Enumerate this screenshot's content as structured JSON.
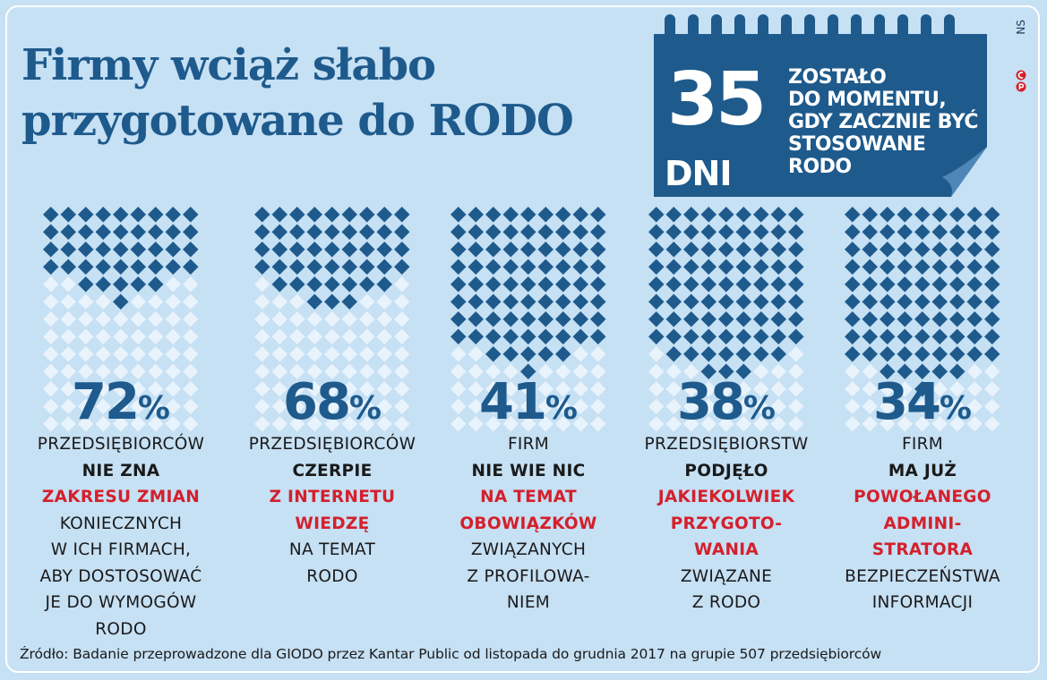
{
  "title": [
    "Firmy wciąż słabo",
    "przygotowane do RODO"
  ],
  "calendar": {
    "number": "35",
    "unit": "DNI",
    "caption": [
      "ZOSTAŁO",
      "DO MOMENTU,",
      "GDY ZACZNIE BYĆ",
      "STOSOWANE",
      "RODO"
    ]
  },
  "author": "NS",
  "logo": "CP",
  "colors": {
    "dark_blue": "#1e5a8c",
    "light_diamond": "#e9f3fb",
    "red": "#d4202c",
    "background": "#c6e0f4"
  },
  "chart_data": {
    "type": "pictogram",
    "title": "Firmy wciąż słabo przygotowane do RODO",
    "categories": [
      "NIE ZNA ZAKRESU ZMIAN",
      "CZERPIE Z INTERNETU WIEDZĘ",
      "NIE WIE NIC NA TEMAT OBOWIĄZKÓW",
      "PODJĘŁO JAKIEKOLWIEK PRZYGOTOWANIA",
      "MA JUŻ POWOŁANEGO ADMINISTRATORA"
    ],
    "values": [
      72,
      68,
      41,
      38,
      34
    ],
    "unit": "%",
    "columns": [
      {
        "value": "72",
        "sign": "%",
        "lines": [
          {
            "t": "PRZEDSIĘBIORCÓW",
            "s": "n"
          },
          {
            "t": "NIE ZNA",
            "s": "b"
          },
          {
            "t": "ZAKRESU ZMIAN",
            "s": "r"
          },
          {
            "t": "KONIECZNYCH",
            "s": "n"
          },
          {
            "t": "W ICH FIRMACH,",
            "s": "n"
          },
          {
            "t": "ABY DOSTOSOWAĆ",
            "s": "n"
          },
          {
            "t": "JE DO WYMOGÓW",
            "s": "n"
          },
          {
            "t": "RODO",
            "s": "n"
          }
        ]
      },
      {
        "value": "68",
        "sign": "%",
        "lines": [
          {
            "t": "PRZEDSIĘBIORCÓW",
            "s": "n"
          },
          {
            "t": "CZERPIE",
            "s": "b"
          },
          {
            "t": "Z INTERNETU",
            "s": "r"
          },
          {
            "t": "WIEDZĘ",
            "s": "r"
          },
          {
            "t": "NA TEMAT",
            "s": "n"
          },
          {
            "t": "RODO",
            "s": "n"
          }
        ]
      },
      {
        "value": "41",
        "sign": "%",
        "lines": [
          {
            "t": "FIRM",
            "s": "n"
          },
          {
            "t": "NIE WIE NIC",
            "s": "b"
          },
          {
            "t": "NA TEMAT",
            "s": "r"
          },
          {
            "t": "OBOWIĄZKÓW",
            "s": "r"
          },
          {
            "t": "ZWIĄZANYCH",
            "s": "n"
          },
          {
            "t": "Z PROFILOWA-",
            "s": "n"
          },
          {
            "t": "NIEM",
            "s": "n"
          }
        ]
      },
      {
        "value": "38",
        "sign": "%",
        "lines": [
          {
            "t": "PRZEDSIĘBIORSTW",
            "s": "n"
          },
          {
            "t": "PODJĘŁO",
            "s": "b"
          },
          {
            "t": "JAKIEKOLWIEK",
            "s": "r"
          },
          {
            "t": "PRZYGOTO-",
            "s": "r"
          },
          {
            "t": "WANIA",
            "s": "r"
          },
          {
            "t": "ZWIĄZANE",
            "s": "n"
          },
          {
            "t": "Z RODO",
            "s": "n"
          }
        ]
      },
      {
        "value": "34",
        "sign": "%",
        "lines": [
          {
            "t": "FIRM",
            "s": "n"
          },
          {
            "t": "MA JUŻ",
            "s": "b"
          },
          {
            "t": "POWOŁANEGO",
            "s": "r"
          },
          {
            "t": "ADMINI-",
            "s": "r"
          },
          {
            "t": "STRATORA",
            "s": "r"
          },
          {
            "t": "BEZPIECZEŃSTWA",
            "s": "n"
          },
          {
            "t": "INFORMACJI",
            "s": "n"
          }
        ]
      }
    ]
  },
  "source": "Źródło: Badanie przeprowadzone dla GIODO przez Kantar Public od listopada do grudnia 2017 na grupie 507 przedsiębiorców"
}
